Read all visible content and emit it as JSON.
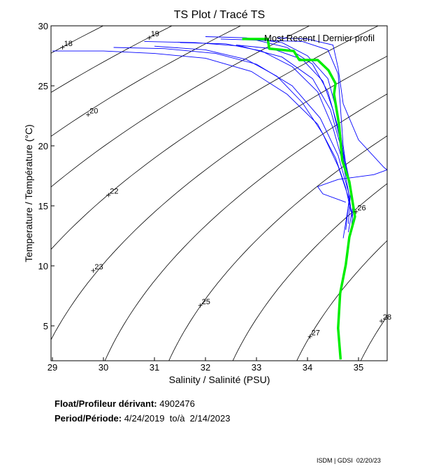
{
  "chart_data": {
    "type": "line",
    "title": "TS Plot / Tracé TS",
    "xlabel": "Salinity / Salinité (PSU)",
    "ylabel": "Temperature / Température (°C)",
    "xlim": [
      28.97,
      35.56
    ],
    "ylim": [
      2.1,
      30
    ],
    "xticks": [
      29,
      30,
      31,
      32,
      33,
      34,
      35
    ],
    "yticks": [
      5,
      10,
      15,
      20,
      25,
      30
    ],
    "grid": false,
    "legend": {
      "label": "Most Recent | Dernier profil",
      "position": "top-right"
    },
    "colors": {
      "profiles": "#0000ff",
      "most_recent": "#00ee00",
      "density_contours": "#000000"
    },
    "density_contours": {
      "levels": [
        16,
        17,
        18,
        19,
        20,
        21,
        22,
        23,
        24,
        25,
        26,
        27,
        28
      ],
      "labels": [
        {
          "text": "18",
          "s": 29.2,
          "t": 28.2
        },
        {
          "text": "19",
          "s": 30.9,
          "t": 29.0
        },
        {
          "text": "20",
          "s": 29.7,
          "t": 22.6
        },
        {
          "text": "22",
          "s": 30.1,
          "t": 15.9
        },
        {
          "text": "23",
          "s": 29.8,
          "t": 9.6
        },
        {
          "text": "25",
          "s": 31.9,
          "t": 6.7
        },
        {
          "text": "26",
          "s": 34.95,
          "t": 14.5
        },
        {
          "text": "27",
          "s": 34.05,
          "t": 4.1
        },
        {
          "text": "28",
          "s": 35.45,
          "t": 5.4
        }
      ]
    },
    "series": [
      {
        "role": "profiles",
        "profiles": [
          [
            [
              29.0,
              27.9
            ],
            [
              30.0,
              27.9
            ],
            [
              31.0,
              27.7
            ],
            [
              32.0,
              27.3
            ],
            [
              32.9,
              26.2
            ],
            [
              33.6,
              24.3
            ],
            [
              34.2,
              21.8
            ],
            [
              34.55,
              19.0
            ],
            [
              34.75,
              16.5
            ],
            [
              34.85,
              14.5
            ]
          ],
          [
            [
              30.2,
              28.2
            ],
            [
              31.2,
              28.1
            ],
            [
              32.2,
              27.7
            ],
            [
              33.0,
              26.8
            ],
            [
              33.7,
              25.0
            ],
            [
              34.25,
              22.3
            ],
            [
              34.6,
              19.2
            ],
            [
              34.8,
              16.2
            ],
            [
              34.88,
              14.0
            ]
          ],
          [
            [
              31.5,
              28.6
            ],
            [
              32.4,
              28.5
            ],
            [
              33.1,
              27.9
            ],
            [
              33.7,
              26.6
            ],
            [
              34.2,
              24.5
            ],
            [
              34.5,
              21.5
            ],
            [
              34.7,
              18.5
            ],
            [
              34.82,
              15.8
            ],
            [
              34.75,
              13.0
            ]
          ],
          [
            [
              32.3,
              28.9
            ],
            [
              33.0,
              28.8
            ],
            [
              33.6,
              28.2
            ],
            [
              34.1,
              26.8
            ],
            [
              34.4,
              24.5
            ],
            [
              34.6,
              21.5
            ],
            [
              34.75,
              18.0
            ],
            [
              34.9,
              15.0
            ],
            [
              34.85,
              12.6
            ]
          ],
          [
            [
              32.0,
              29.1
            ],
            [
              32.8,
              29.0
            ],
            [
              33.5,
              28.6
            ],
            [
              34.0,
              27.5
            ],
            [
              34.4,
              25.6
            ],
            [
              34.6,
              22.5
            ],
            [
              34.7,
              19.5
            ],
            [
              34.85,
              16.6
            ],
            [
              34.8,
              13.5
            ]
          ],
          [
            [
              33.0,
              28.8
            ],
            [
              33.9,
              28.7
            ],
            [
              34.4,
              28.0
            ],
            [
              34.6,
              26.0
            ],
            [
              34.65,
              23.0
            ],
            [
              34.7,
              20.0
            ],
            [
              34.8,
              17.0
            ],
            [
              34.9,
              14.8
            ]
          ],
          [
            [
              31.0,
              28.3
            ],
            [
              32.0,
              28.0
            ],
            [
              32.8,
              27.2
            ],
            [
              33.4,
              25.8
            ],
            [
              33.9,
              23.6
            ],
            [
              34.3,
              21.0
            ],
            [
              34.6,
              18.3
            ],
            [
              34.82,
              15.5
            ],
            [
              34.7,
              12.3
            ]
          ],
          [
            [
              33.4,
              29.0
            ],
            [
              34.0,
              28.9
            ],
            [
              34.5,
              28.4
            ],
            [
              34.6,
              26.5
            ],
            [
              34.7,
              23.5
            ],
            [
              35.0,
              20.5
            ],
            [
              35.5,
              18.2
            ],
            [
              35.56,
              18.0
            ],
            [
              35.3,
              17.6
            ],
            [
              34.6,
              17.2
            ],
            [
              34.2,
              16.6
            ],
            [
              34.3,
              16.0
            ],
            [
              34.75,
              15.3
            ]
          ],
          [
            [
              32.6,
              28.4
            ],
            [
              33.3,
              28.1
            ],
            [
              33.9,
              27.2
            ],
            [
              34.3,
              25.4
            ],
            [
              34.5,
              23.0
            ],
            [
              34.65,
              20.3
            ],
            [
              34.78,
              17.5
            ],
            [
              34.9,
              15.2
            ],
            [
              34.8,
              12.8
            ]
          ],
          [
            [
              30.8,
              28.7
            ],
            [
              31.8,
              28.6
            ],
            [
              32.7,
              28.3
            ],
            [
              33.5,
              27.4
            ],
            [
              34.1,
              25.6
            ],
            [
              34.45,
              23.0
            ],
            [
              34.65,
              20.0
            ],
            [
              34.8,
              17.2
            ],
            [
              34.92,
              14.6
            ]
          ]
        ]
      },
      {
        "role": "most_recent",
        "name": "Most Recent | Dernier profil",
        "points": [
          [
            32.72,
            28.9
          ],
          [
            33.22,
            28.9
          ],
          [
            33.25,
            28.1
          ],
          [
            33.73,
            27.9
          ],
          [
            33.84,
            27.15
          ],
          [
            34.2,
            27.15
          ],
          [
            34.41,
            26.3
          ],
          [
            34.55,
            25.2
          ],
          [
            34.52,
            24.3
          ],
          [
            34.62,
            21.7
          ],
          [
            34.68,
            18.8
          ],
          [
            34.82,
            17.0
          ],
          [
            34.93,
            14.1
          ],
          [
            34.82,
            12.4
          ],
          [
            34.75,
            10.1
          ],
          [
            34.64,
            7.7
          ],
          [
            34.6,
            4.8
          ],
          [
            34.65,
            2.2
          ]
        ]
      }
    ]
  },
  "info": {
    "float_label": "Float/Profileur dérivant:",
    "float_value": "4902476",
    "period_label": "Period/Période:",
    "period_value": "4/24/2019  to/à  2/14/2023",
    "credit": "ISDM | GDSI  02/20/23"
  }
}
